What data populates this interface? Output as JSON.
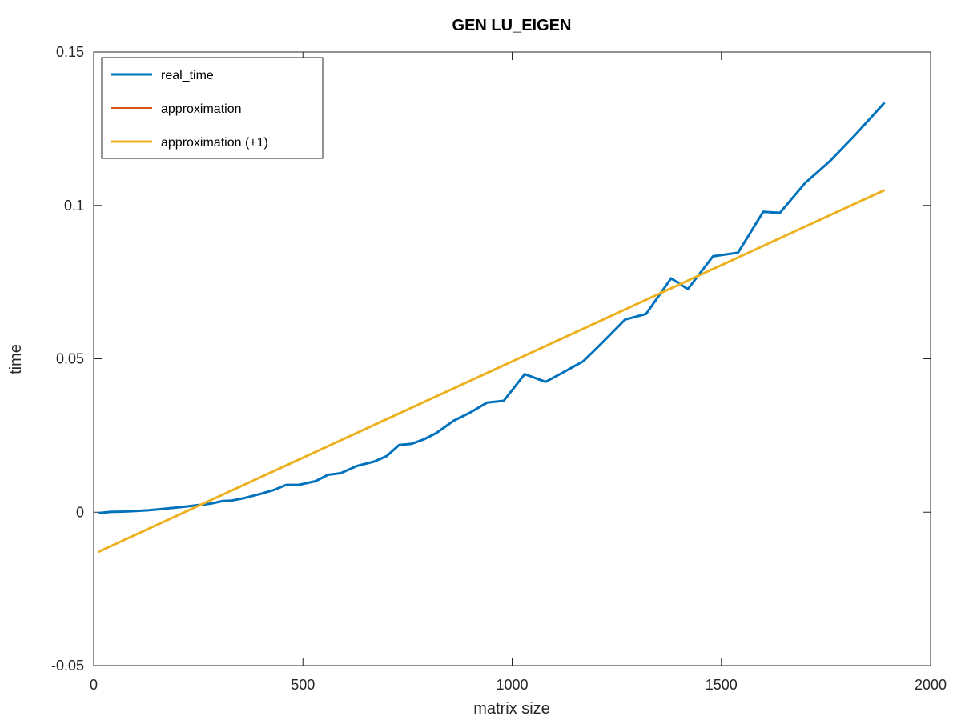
{
  "chart_data": {
    "type": "line",
    "title": "GEN LU_EIGEN",
    "xlabel": "matrix size",
    "ylabel": "time",
    "xlim": [
      0,
      2000
    ],
    "ylim": [
      -0.05,
      0.15
    ],
    "xticks": [
      0,
      500,
      1000,
      1500,
      2000
    ],
    "xtick_labels": [
      "0",
      "500",
      "1000",
      "1500",
      "2000"
    ],
    "yticks": [
      -0.05,
      0,
      0.05,
      0.1,
      0.15
    ],
    "ytick_labels": [
      "-0.05",
      "0",
      "0.05",
      "0.1",
      "0.15"
    ],
    "grid": false,
    "legend_position": "top-left",
    "series": [
      {
        "name": "real_time",
        "color": "#0072BD",
        "x": [
          10,
          40,
          70,
          100,
          130,
          160,
          190,
          220,
          250,
          280,
          310,
          330,
          360,
          400,
          430,
          460,
          490,
          530,
          560,
          590,
          630,
          670,
          700,
          730,
          760,
          790,
          820,
          860,
          900,
          940,
          980,
          1030,
          1080,
          1120,
          1170,
          1210,
          1270,
          1320,
          1380,
          1420,
          1480,
          1540,
          1600,
          1640,
          1700,
          1760,
          1820,
          1890
        ],
        "y": [
          -0.0003,
          0.0001,
          0.0002,
          0.0004,
          0.0006,
          0.001,
          0.0014,
          0.0018,
          0.0023,
          0.0028,
          0.0037,
          0.0038,
          0.0046,
          0.006,
          0.0072,
          0.0089,
          0.0089,
          0.0101,
          0.0122,
          0.0127,
          0.0151,
          0.0165,
          0.0183,
          0.0219,
          0.0223,
          0.0238,
          0.0259,
          0.0298,
          0.0325,
          0.0357,
          0.0363,
          0.045,
          0.0425,
          0.0454,
          0.0492,
          0.0545,
          0.0628,
          0.0646,
          0.0762,
          0.0727,
          0.0834,
          0.0846,
          0.0979,
          0.0976,
          0.1073,
          0.1145,
          0.123,
          0.1335
        ]
      },
      {
        "name": "approximation",
        "color": "#D95319",
        "x": [
          10,
          1890
        ],
        "y": [
          -0.013,
          0.105
        ]
      },
      {
        "name": "approximation (+1)",
        "color": "#EDB120",
        "x": [
          10,
          1890
        ],
        "y": [
          -0.013,
          0.105
        ]
      }
    ]
  }
}
